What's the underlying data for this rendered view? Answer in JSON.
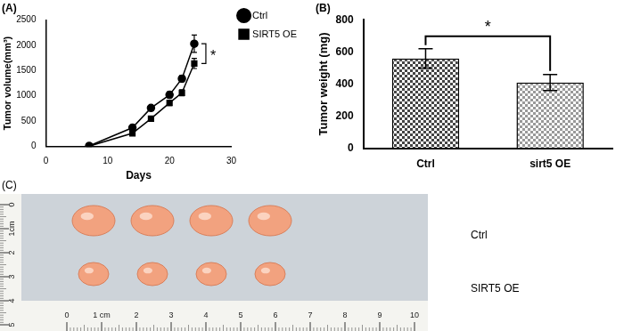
{
  "chart_data": [
    {
      "type": "line",
      "title": "(A)",
      "x_label": "Days",
      "y_label": "Tumor volume(mm³)",
      "x": [
        7,
        14,
        17,
        20,
        22,
        24
      ],
      "series": [
        {
          "name": "Ctrl",
          "color": "#000000",
          "marker": "circle",
          "values": [
            10,
            370,
            760,
            1020,
            1340,
            2030
          ],
          "errors": [
            5,
            30,
            30,
            60,
            60,
            170
          ]
        },
        {
          "name": "SIRT5 OE",
          "color": "#000000",
          "marker": "square",
          "values": [
            5,
            260,
            550,
            860,
            1060,
            1640
          ],
          "errors": [
            5,
            20,
            30,
            50,
            60,
            100
          ]
        }
      ],
      "xlim": [
        0,
        30
      ],
      "xticks": [
        0,
        10,
        20,
        30
      ],
      "ylim": [
        0,
        2500
      ],
      "yticks": [
        0,
        500,
        1000,
        1500,
        2000,
        2500
      ],
      "legend": "upper right",
      "annotations": [
        "*"
      ]
    },
    {
      "type": "bar",
      "title": "(B)",
      "y_label": "Tumor weight (mg)",
      "categories": [
        "Ctrl",
        "sirt5 OE"
      ],
      "values": [
        560,
        410
      ],
      "errors": [
        60,
        50
      ],
      "colors": [
        "#444444",
        "#999999"
      ],
      "ylim": [
        0,
        800
      ],
      "yticks": [
        0,
        200,
        400,
        600,
        800
      ],
      "annotations": [
        "*"
      ]
    }
  ],
  "photo": {
    "label": "(C)",
    "rows": [
      {
        "label": "Ctrl",
        "tumors": 4
      },
      {
        "label": "SIRT5 OE",
        "tumors": 4
      }
    ],
    "ruler_x": [
      "0",
      "1 cm",
      "2",
      "3",
      "4",
      "5",
      "6",
      "7",
      "8",
      "9",
      "10"
    ],
    "ruler_y": [
      "0",
      "1cm",
      "2",
      "3",
      "4",
      "5"
    ]
  }
}
